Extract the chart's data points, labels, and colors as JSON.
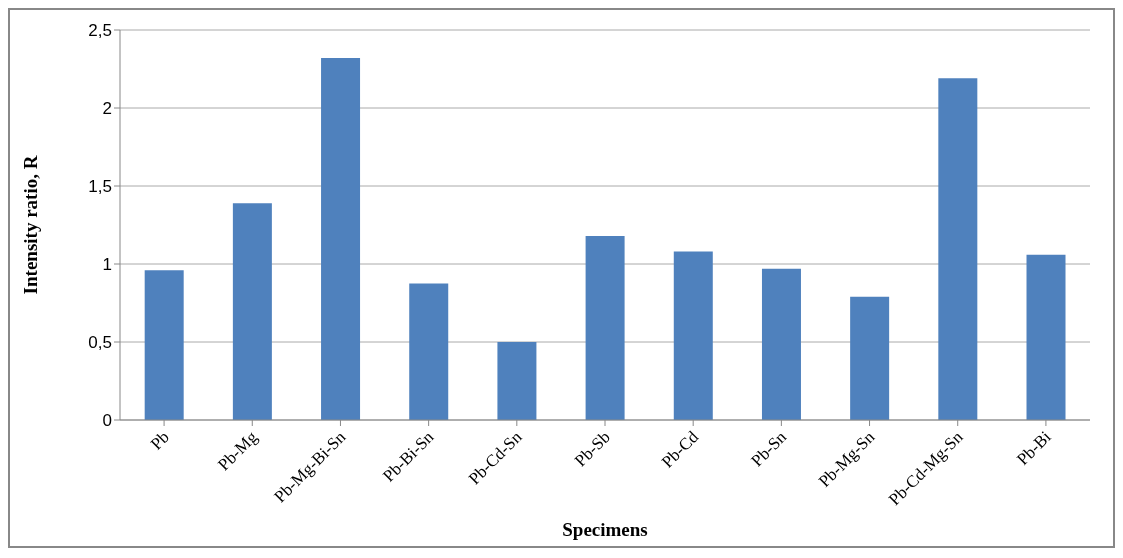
{
  "chart_data": {
    "type": "bar",
    "xlabel": "Specimens",
    "ylabel": "Intensity ratio, R",
    "categories": [
      "Pb",
      "Pb-Mg",
      "Pb-Mg-Bi-Sn",
      "Pb-Bi-Sn",
      "Pb-Cd-Sn",
      "Pb-Sb",
      "Pb-Cd",
      "Pb-Sn",
      "Pb-Mg-Sn",
      "Pb-Cd-Mg-Sn",
      "Pb-Bi"
    ],
    "values": [
      0.96,
      1.39,
      2.32,
      0.875,
      0.5,
      1.18,
      1.08,
      0.97,
      0.79,
      2.19,
      1.06
    ],
    "color": "#4f81bd",
    "ylim": [
      0,
      2.5
    ],
    "yticks": [
      0,
      {
        "value": 0.5,
        "label": "0,5"
      },
      1,
      {
        "value": 1.5,
        "label": "1,5"
      },
      2,
      {
        "value": 2.5,
        "label": "2,5"
      }
    ],
    "grid": "y"
  }
}
